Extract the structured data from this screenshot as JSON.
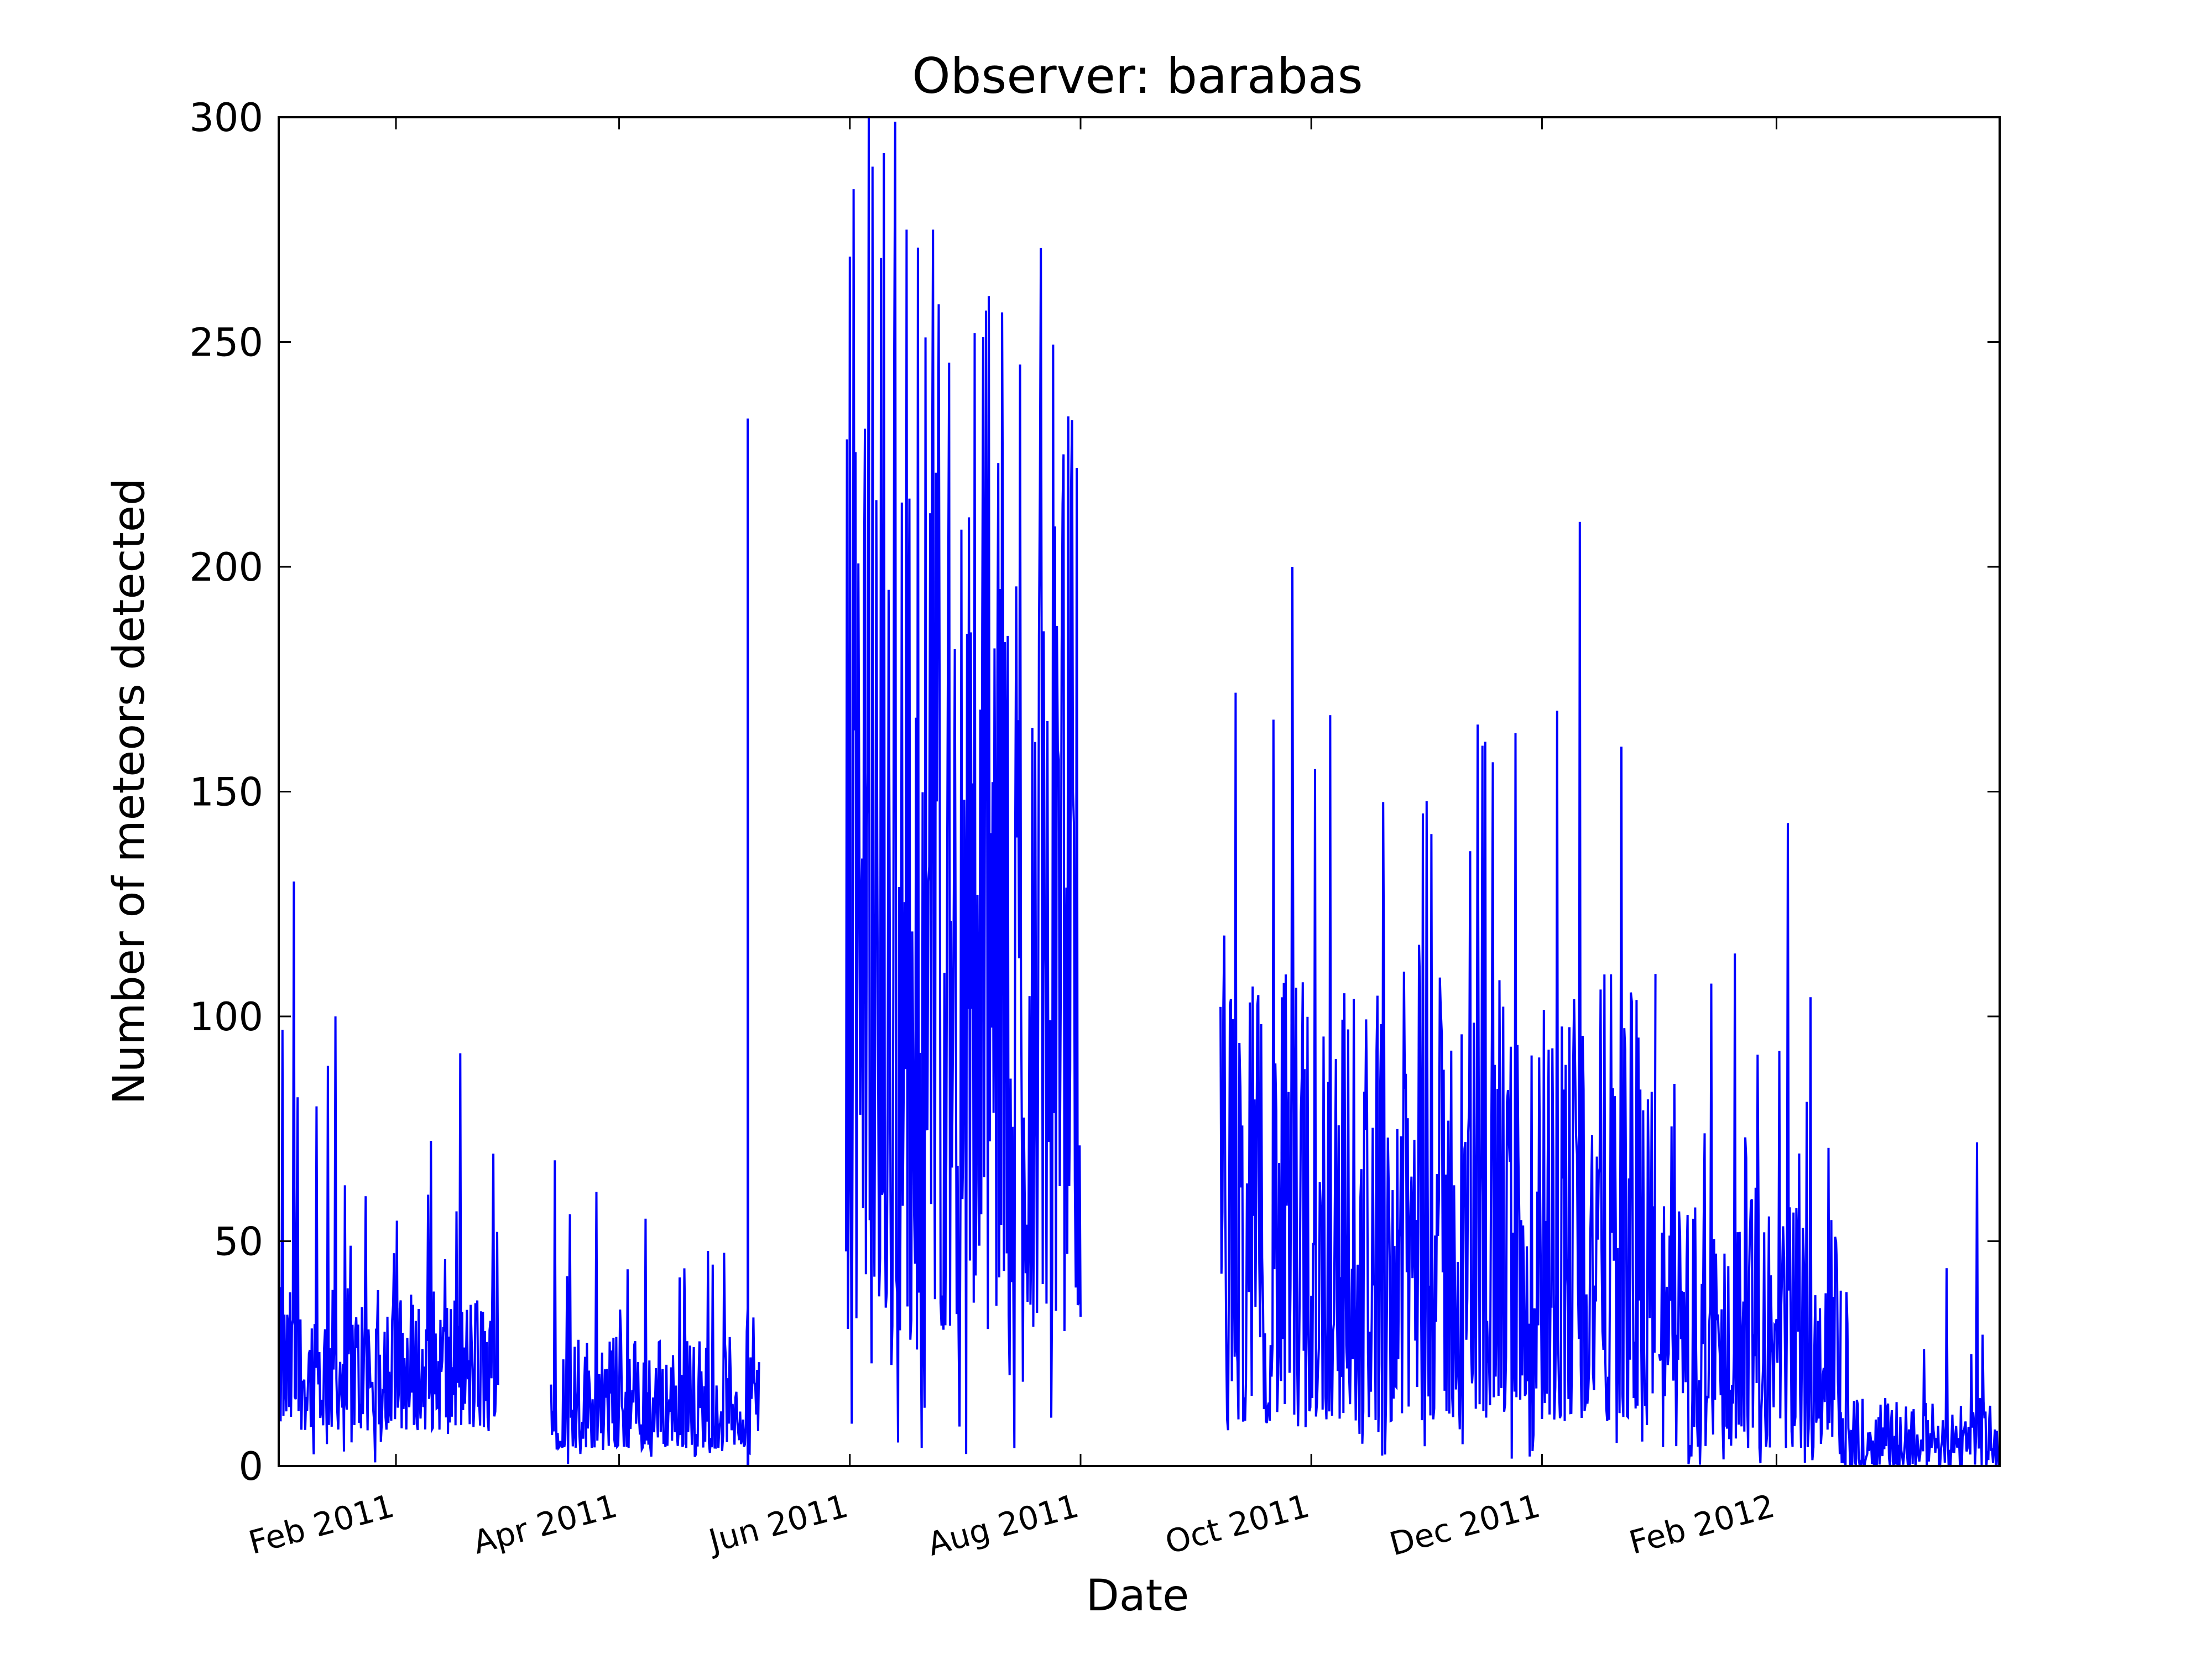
{
  "chart_data": {
    "type": "line",
    "title": "Observer: barabas",
    "xlabel": "Date",
    "ylabel": "Number of meteors detected",
    "ylim": [
      0,
      300
    ],
    "xlim": [
      "2011-01-01",
      "2012-03-31"
    ],
    "grid": false,
    "legend": "none",
    "line_color": "#0000ff",
    "yticks": [
      0,
      50,
      100,
      150,
      200,
      250,
      300
    ],
    "xticks": [
      {
        "date": "2011-02-01",
        "label": "Feb 2011"
      },
      {
        "date": "2011-04-01",
        "label": "Apr 2011"
      },
      {
        "date": "2011-06-01",
        "label": "Jun 2011"
      },
      {
        "date": "2011-08-01",
        "label": "Aug 2011"
      },
      {
        "date": "2011-10-01",
        "label": "Oct 2011"
      },
      {
        "date": "2011-12-01",
        "label": "Dec 2011"
      },
      {
        "date": "2012-02-01",
        "label": "Feb 2012"
      }
    ],
    "series": [
      {
        "segments": [
          {
            "start": "2011-01-01",
            "end": "2011-02-28",
            "typical": [
              8,
              40
            ],
            "max": 130,
            "peaks": [
              [
                "2011-01-02",
                97
              ],
              [
                "2011-01-05",
                130
              ],
              [
                "2011-01-06",
                82
              ],
              [
                "2011-01-16",
                100
              ],
              [
                "2011-01-14",
                89
              ],
              [
                "2011-01-11",
                80
              ],
              [
                "2011-01-24",
                60
              ],
              [
                "2011-01-20",
                49
              ],
              [
                "2011-02-14",
                46
              ]
            ]
          },
          {
            "start": "2011-03-14",
            "end": "2011-05-08",
            "typical": [
              4,
              30
            ],
            "max": 68,
            "peaks": [
              [
                "2011-03-15",
                68
              ],
              [
                "2011-03-19",
                56
              ],
              [
                "2011-03-26",
                61
              ],
              [
                "2011-04-08",
                55
              ],
              [
                "2011-05-05",
                35
              ]
            ]
          },
          {
            "start": "2011-05-05",
            "end": "2011-05-05",
            "typical": [
              0,
              233
            ],
            "max": 233,
            "peaks": [
              [
                "2011-05-05",
                233
              ]
            ]
          },
          {
            "start": "2011-05-31",
            "end": "2011-08-01",
            "typical": [
              30,
              230
            ],
            "max": 300,
            "peaks": [
              [
                "2011-06-01",
                269
              ],
              [
                "2011-06-02",
                284
              ],
              [
                "2011-06-06",
                300
              ],
              [
                "2011-06-07",
                289
              ],
              [
                "2011-06-10",
                292
              ],
              [
                "2011-06-13",
                299
              ],
              [
                "2011-06-16",
                275
              ],
              [
                "2011-06-19",
                271
              ],
              [
                "2011-06-23",
                275
              ],
              [
                "2011-07-04",
                252
              ],
              [
                "2011-07-07",
                257
              ],
              [
                "2011-07-16",
                245
              ],
              [
                "2011-07-27",
                181
              ],
              [
                "2011-07-31",
                222
              ]
            ]
          },
          {
            "start": "2011-09-07",
            "end": "2011-12-31",
            "typical": [
              10,
              110
            ],
            "max": 210,
            "peaks": [
              [
                "2011-09-08",
                118
              ],
              [
                "2011-09-11",
                172
              ],
              [
                "2011-09-21",
                166
              ],
              [
                "2011-09-26",
                200
              ],
              [
                "2011-10-02",
                155
              ],
              [
                "2011-10-06",
                167
              ],
              [
                "2011-11-24",
                163
              ],
              [
                "2011-12-05",
                168
              ],
              [
                "2011-12-11",
                210
              ],
              [
                "2011-12-22",
                160
              ]
            ]
          },
          {
            "start": "2012-01-01",
            "end": "2012-02-18",
            "typical": [
              4,
              60
            ],
            "max": 143,
            "peaks": [
              [
                "2012-01-05",
                85
              ],
              [
                "2012-01-13",
                74
              ],
              [
                "2012-01-21",
                114
              ],
              [
                "2012-02-04",
                143
              ],
              [
                "2012-02-09",
                81
              ]
            ]
          },
          {
            "start": "2012-02-18",
            "end": "2012-03-31",
            "typical": [
              0,
              15
            ],
            "max": 72,
            "peaks": [
              [
                "2012-03-11",
                26
              ],
              [
                "2012-03-17",
                44
              ],
              [
                "2012-03-25",
                72
              ]
            ]
          }
        ]
      }
    ]
  }
}
